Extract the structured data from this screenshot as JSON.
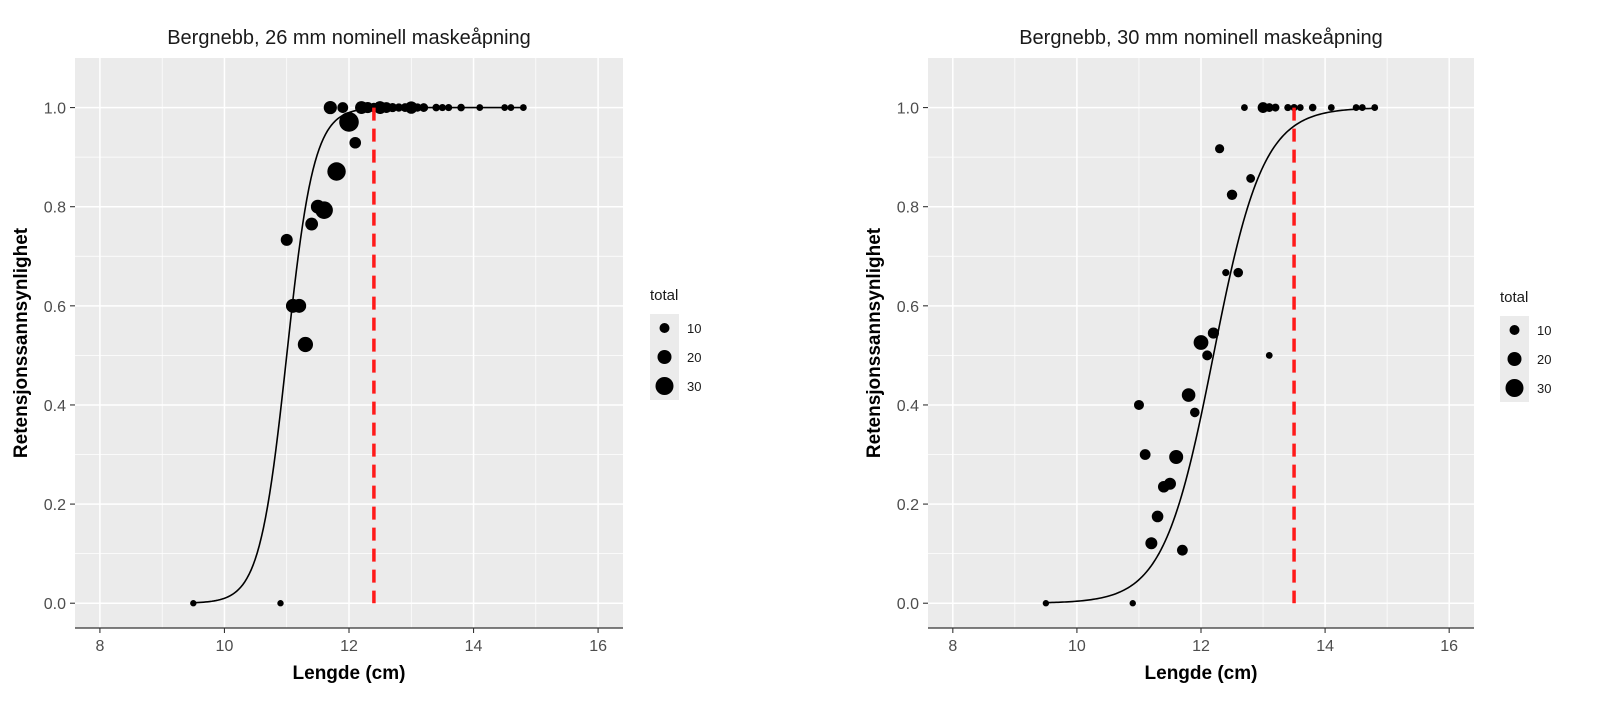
{
  "chart_data": [
    {
      "type": "scatter",
      "title": "Bergnebb, 26 mm nominell maskeåpning",
      "xlabel": "Lengde (cm)",
      "ylabel": "Retensjonssannsynlighet",
      "xlim": [
        7.6,
        16.4
      ],
      "ylim": [
        -0.05,
        1.1
      ],
      "xticks": [
        8,
        10,
        12,
        14,
        16
      ],
      "yticks": [
        0.0,
        0.2,
        0.4,
        0.6,
        0.8,
        1.0
      ],
      "xtick_labels": [
        "8",
        "10",
        "12",
        "14",
        "16"
      ],
      "ytick_labels": [
        "0.0",
        "0.2",
        "0.4",
        "0.6",
        "0.8",
        "1.0"
      ],
      "curve": {
        "l50": 11.0,
        "k": 4.6,
        "from": 9.5,
        "to": 14.8
      },
      "vline": {
        "x": 12.4,
        "color": "#ff1a1a"
      },
      "points": [
        {
          "x": 9.5,
          "y": 0.0,
          "total": 1
        },
        {
          "x": 10.9,
          "y": 0.0,
          "total": 1
        },
        {
          "x": 11.0,
          "y": 0.733,
          "total": 15
        },
        {
          "x": 11.1,
          "y": 0.6,
          "total": 20
        },
        {
          "x": 11.2,
          "y": 0.6,
          "total": 20
        },
        {
          "x": 11.3,
          "y": 0.522,
          "total": 23
        },
        {
          "x": 11.4,
          "y": 0.765,
          "total": 17
        },
        {
          "x": 11.5,
          "y": 0.8,
          "total": 20
        },
        {
          "x": 11.6,
          "y": 0.793,
          "total": 29
        },
        {
          "x": 11.7,
          "y": 1.0,
          "total": 18
        },
        {
          "x": 11.8,
          "y": 0.871,
          "total": 31
        },
        {
          "x": 11.9,
          "y": 1.0,
          "total": 12
        },
        {
          "x": 12.0,
          "y": 0.971,
          "total": 34
        },
        {
          "x": 12.1,
          "y": 0.929,
          "total": 14
        },
        {
          "x": 12.2,
          "y": 1.0,
          "total": 17
        },
        {
          "x": 12.3,
          "y": 1.0,
          "total": 13
        },
        {
          "x": 12.4,
          "y": 1.0,
          "total": 9
        },
        {
          "x": 12.5,
          "y": 1.0,
          "total": 17
        },
        {
          "x": 12.6,
          "y": 1.0,
          "total": 12
        },
        {
          "x": 12.7,
          "y": 1.0,
          "total": 8
        },
        {
          "x": 12.8,
          "y": 1.0,
          "total": 6
        },
        {
          "x": 12.9,
          "y": 1.0,
          "total": 7
        },
        {
          "x": 13.0,
          "y": 1.0,
          "total": 16
        },
        {
          "x": 13.1,
          "y": 1.0,
          "total": 6
        },
        {
          "x": 13.2,
          "y": 1.0,
          "total": 7
        },
        {
          "x": 13.4,
          "y": 1.0,
          "total": 4
        },
        {
          "x": 13.5,
          "y": 1.0,
          "total": 3
        },
        {
          "x": 13.6,
          "y": 1.0,
          "total": 3
        },
        {
          "x": 13.8,
          "y": 1.0,
          "total": 4
        },
        {
          "x": 14.1,
          "y": 1.0,
          "total": 2
        },
        {
          "x": 14.5,
          "y": 1.0,
          "total": 2
        },
        {
          "x": 14.6,
          "y": 1.0,
          "total": 2
        },
        {
          "x": 14.8,
          "y": 1.0,
          "total": 2
        }
      ]
    },
    {
      "type": "scatter",
      "title": "Bergnebb, 30 mm nominell maskeåpning",
      "xlabel": "Lengde (cm)",
      "ylabel": "Retensjonssannsynlighet",
      "xlim": [
        7.6,
        16.4
      ],
      "ylim": [
        -0.05,
        1.1
      ],
      "xticks": [
        8,
        10,
        12,
        14,
        16
      ],
      "yticks": [
        0.0,
        0.2,
        0.4,
        0.6,
        0.8,
        1.0
      ],
      "xtick_labels": [
        "8",
        "10",
        "12",
        "14",
        "16"
      ],
      "ytick_labels": [
        "0.0",
        "0.2",
        "0.4",
        "0.6",
        "0.8",
        "1.0"
      ],
      "curve": {
        "l50": 12.2,
        "k": 2.5,
        "from": 9.5,
        "to": 14.8
      },
      "vline": {
        "x": 13.5,
        "color": "#ff1a1a"
      },
      "points": [
        {
          "x": 9.5,
          "y": 0.0,
          "total": 1
        },
        {
          "x": 10.9,
          "y": 0.0,
          "total": 1
        },
        {
          "x": 11.0,
          "y": 0.4,
          "total": 10
        },
        {
          "x": 11.1,
          "y": 0.3,
          "total": 12
        },
        {
          "x": 11.2,
          "y": 0.121,
          "total": 15
        },
        {
          "x": 11.3,
          "y": 0.175,
          "total": 14
        },
        {
          "x": 11.4,
          "y": 0.235,
          "total": 14
        },
        {
          "x": 11.5,
          "y": 0.241,
          "total": 15
        },
        {
          "x": 11.6,
          "y": 0.295,
          "total": 20
        },
        {
          "x": 11.7,
          "y": 0.107,
          "total": 12
        },
        {
          "x": 11.8,
          "y": 0.42,
          "total": 19
        },
        {
          "x": 11.9,
          "y": 0.385,
          "total": 9
        },
        {
          "x": 12.0,
          "y": 0.526,
          "total": 22
        },
        {
          "x": 12.1,
          "y": 0.5,
          "total": 10
        },
        {
          "x": 12.2,
          "y": 0.545,
          "total": 13
        },
        {
          "x": 12.3,
          "y": 0.917,
          "total": 8
        },
        {
          "x": 12.4,
          "y": 0.667,
          "total": 3
        },
        {
          "x": 12.5,
          "y": 0.824,
          "total": 11
        },
        {
          "x": 12.6,
          "y": 0.667,
          "total": 9
        },
        {
          "x": 12.8,
          "y": 0.857,
          "total": 7
        },
        {
          "x": 12.7,
          "y": 1.0,
          "total": 2
        },
        {
          "x": 13.0,
          "y": 1.0,
          "total": 12
        },
        {
          "x": 13.1,
          "y": 1.0,
          "total": 7
        },
        {
          "x": 13.1,
          "y": 0.5,
          "total": 2
        },
        {
          "x": 13.2,
          "y": 1.0,
          "total": 5
        },
        {
          "x": 13.4,
          "y": 1.0,
          "total": 3
        },
        {
          "x": 13.5,
          "y": 1.0,
          "total": 3
        },
        {
          "x": 13.6,
          "y": 1.0,
          "total": 2
        },
        {
          "x": 13.8,
          "y": 1.0,
          "total": 4
        },
        {
          "x": 14.1,
          "y": 1.0,
          "total": 2
        },
        {
          "x": 14.5,
          "y": 1.0,
          "total": 2
        },
        {
          "x": 14.6,
          "y": 1.0,
          "total": 2
        },
        {
          "x": 14.8,
          "y": 1.0,
          "total": 2
        }
      ]
    }
  ],
  "legend": {
    "title": "total",
    "entries": [
      {
        "label": "10",
        "value": 10
      },
      {
        "label": "20",
        "value": 20
      },
      {
        "label": "30",
        "value": 30
      }
    ]
  },
  "colors": {
    "panel": "#ebebeb",
    "grid_major": "#ffffff",
    "point": "#000000",
    "curve": "#000000",
    "vline": "#ff1a1a"
  }
}
